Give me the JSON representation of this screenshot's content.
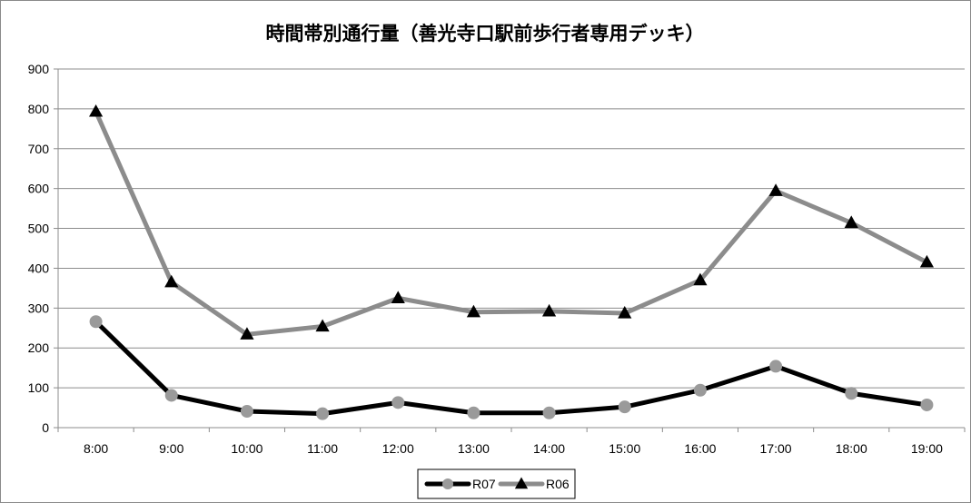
{
  "chart_data": {
    "type": "line",
    "title": "時間帯別通行量（善光寺口駅前歩行者専用デッキ）",
    "xlabel": "",
    "ylabel": "",
    "categories": [
      "8:00",
      "9:00",
      "10:00",
      "11:00",
      "12:00",
      "13:00",
      "14:00",
      "15:00",
      "16:00",
      "17:00",
      "18:00",
      "19:00"
    ],
    "ylim": [
      0,
      900
    ],
    "yticks": [
      "0",
      "100",
      "200",
      "300",
      "400",
      "500",
      "600",
      "700",
      "800",
      "900"
    ],
    "grid": true,
    "legend_position": "bottom",
    "series": [
      {
        "name": "R07",
        "marker": "circle",
        "line_color": "#000000",
        "marker_color": "#9a9a9a",
        "values": [
          266,
          81,
          41,
          35,
          63,
          37,
          37,
          52,
          94,
          154,
          86,
          57
        ]
      },
      {
        "name": "R06",
        "marker": "triangle",
        "line_color": "#8c8c8c",
        "marker_color": "#000000",
        "values": [
          793,
          365,
          234,
          254,
          325,
          290,
          292,
          287,
          370,
          594,
          514,
          415
        ]
      }
    ]
  }
}
